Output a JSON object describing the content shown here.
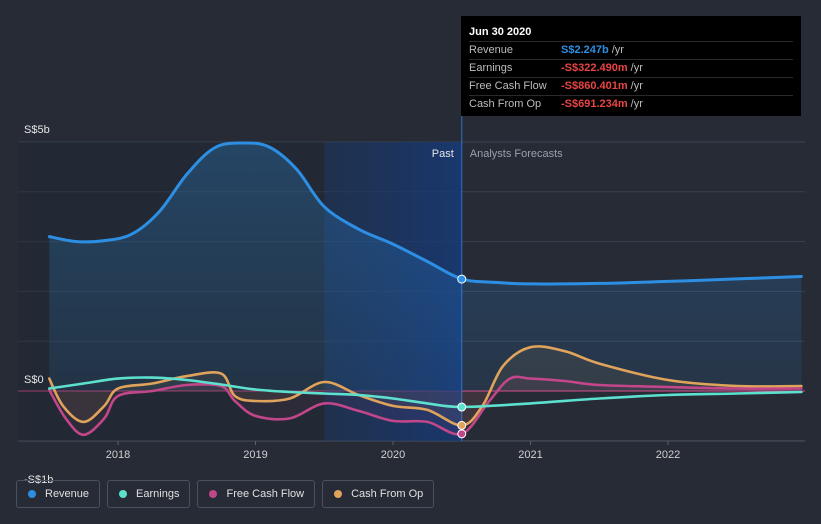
{
  "chart_data": {
    "type": "line",
    "ytick_labels": [
      "S$5b",
      "S$0",
      "-S$1b"
    ],
    "ylim": [
      -1,
      5
    ],
    "xtick_labels": [
      "2018",
      "2019",
      "2020",
      "2021",
      "2022"
    ],
    "xlim": [
      2017.5,
      2022.97
    ],
    "region_labels": {
      "past": "Past",
      "forecast": "Analysts Forecasts"
    },
    "divider_x": 2020.5,
    "shade_start_x": 2019.5,
    "series": [
      {
        "key": "revenue",
        "name": "Revenue",
        "color": "#2d8fe3",
        "fill": true,
        "x": [
          2017.5,
          2017.7,
          2017.9,
          2018.1,
          2018.3,
          2018.5,
          2018.7,
          2018.9,
          2019.1,
          2019.3,
          2019.5,
          2019.75,
          2020.0,
          2020.25,
          2020.5,
          2020.75,
          2021.0,
          2021.5,
          2022.0,
          2022.5,
          2022.97
        ],
        "values": [
          3.1,
          3.0,
          3.02,
          3.15,
          3.6,
          4.35,
          4.88,
          4.98,
          4.9,
          4.45,
          3.7,
          3.25,
          2.95,
          2.6,
          2.25,
          2.18,
          2.15,
          2.16,
          2.2,
          2.25,
          2.3
        ]
      },
      {
        "key": "earnings",
        "name": "Earnings",
        "color": "#5ee0cf",
        "fill": false,
        "x": [
          2017.5,
          2017.75,
          2018.0,
          2018.25,
          2018.5,
          2018.75,
          2019.0,
          2019.25,
          2019.5,
          2019.75,
          2020.0,
          2020.25,
          2020.5,
          2021.0,
          2021.5,
          2022.0,
          2022.5,
          2022.97
        ],
        "values": [
          0.05,
          0.15,
          0.25,
          0.27,
          0.22,
          0.13,
          0.03,
          -0.02,
          -0.05,
          -0.08,
          -0.15,
          -0.25,
          -0.32,
          -0.25,
          -0.15,
          -0.08,
          -0.05,
          -0.02
        ]
      },
      {
        "key": "free_cash_flow",
        "name": "Free Cash Flow",
        "color": "#c2468a",
        "fill": false,
        "x": [
          2017.5,
          2017.62,
          2017.75,
          2017.9,
          2018.0,
          2018.25,
          2018.5,
          2018.75,
          2018.85,
          2019.0,
          2019.25,
          2019.5,
          2019.75,
          2020.0,
          2020.25,
          2020.5,
          2020.7,
          2020.85,
          2021.0,
          2021.25,
          2021.5,
          2022.0,
          2022.5,
          2022.97
        ],
        "values": [
          0.02,
          -0.55,
          -0.88,
          -0.55,
          -0.1,
          0.0,
          0.12,
          0.1,
          -0.2,
          -0.5,
          -0.55,
          -0.25,
          -0.4,
          -0.6,
          -0.62,
          -0.86,
          -0.2,
          0.25,
          0.25,
          0.2,
          0.12,
          0.08,
          0.05,
          0.05
        ]
      },
      {
        "key": "cash_from_op",
        "name": "Cash From Op",
        "color": "#e0a35b",
        "fill": false,
        "x": [
          2017.5,
          2017.6,
          2017.75,
          2017.9,
          2018.0,
          2018.25,
          2018.5,
          2018.75,
          2018.85,
          2019.0,
          2019.25,
          2019.5,
          2019.75,
          2020.0,
          2020.25,
          2020.5,
          2020.65,
          2020.8,
          2021.0,
          2021.25,
          2021.5,
          2022.0,
          2022.5,
          2022.97
        ],
        "values": [
          0.25,
          -0.3,
          -0.62,
          -0.3,
          0.05,
          0.15,
          0.3,
          0.35,
          -0.1,
          -0.2,
          -0.15,
          0.18,
          -0.08,
          -0.3,
          -0.38,
          -0.69,
          -0.3,
          0.5,
          0.88,
          0.8,
          0.55,
          0.22,
          0.1,
          0.1
        ]
      }
    ],
    "markers": [
      {
        "series": "revenue",
        "x": 2020.5,
        "y": 2.247
      },
      {
        "series": "earnings",
        "x": 2020.5,
        "y": -0.322
      },
      {
        "series": "cash_from_op",
        "x": 2020.5,
        "y": -0.691
      },
      {
        "series": "free_cash_flow",
        "x": 2020.5,
        "y": -0.86
      }
    ]
  },
  "tooltip": {
    "date": "Jun 30 2020",
    "rows": [
      {
        "label": "Revenue",
        "value": "S$2.247b",
        "unit": "/yr",
        "color": "#2d8fe3"
      },
      {
        "label": "Earnings",
        "value": "-S$322.490m",
        "unit": "/yr",
        "color": "#e84545"
      },
      {
        "label": "Free Cash Flow",
        "value": "-S$860.401m",
        "unit": "/yr",
        "color": "#e84545"
      },
      {
        "label": "Cash From Op",
        "value": "-S$691.234m",
        "unit": "/yr",
        "color": "#e84545"
      }
    ]
  },
  "legend": [
    {
      "label": "Revenue",
      "color": "#2d8fe3"
    },
    {
      "label": "Earnings",
      "color": "#5ee0cf"
    },
    {
      "label": "Free Cash Flow",
      "color": "#c2468a"
    },
    {
      "label": "Cash From Op",
      "color": "#e0a35b"
    }
  ]
}
